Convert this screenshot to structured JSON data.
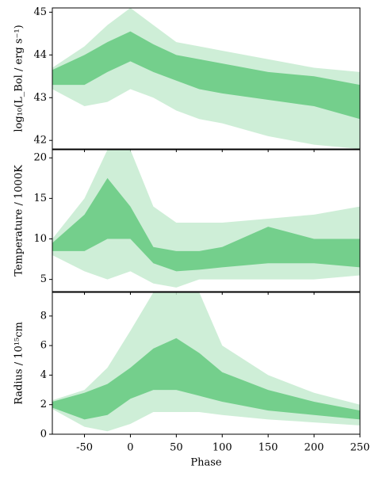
{
  "chart_data": [
    {
      "type": "band",
      "ylabel": "log₁₀(L_Bol / erg s⁻¹)",
      "x": [
        -85,
        -50,
        -25,
        0,
        25,
        50,
        75,
        100,
        150,
        200,
        250
      ],
      "xlim": [
        -85,
        250
      ],
      "ylim": [
        41.8,
        45.1
      ],
      "yticks": [
        42,
        43,
        44,
        45
      ],
      "series": [
        {
          "color": "#c6ebd0",
          "upper": [
            43.7,
            44.2,
            44.7,
            45.1,
            44.7,
            44.3,
            44.2,
            44.1,
            43.9,
            43.7,
            43.6
          ],
          "lower": [
            43.2,
            42.8,
            42.9,
            43.2,
            43.0,
            42.7,
            42.5,
            42.4,
            42.1,
            41.9,
            41.8
          ]
        },
        {
          "color": "#64c97f",
          "upper": [
            43.65,
            44.0,
            44.3,
            44.55,
            44.25,
            44.0,
            43.9,
            43.8,
            43.6,
            43.5,
            43.3
          ],
          "lower": [
            43.3,
            43.3,
            43.6,
            43.85,
            43.6,
            43.4,
            43.2,
            43.1,
            42.95,
            42.8,
            42.5
          ]
        }
      ]
    },
    {
      "type": "band",
      "ylabel": "Temperature / 1000K",
      "x": [
        -85,
        -50,
        -25,
        0,
        25,
        50,
        75,
        100,
        150,
        200,
        250
      ],
      "xlim": [
        -85,
        250
      ],
      "ylim": [
        3.5,
        21
      ],
      "yticks": [
        5,
        10,
        15,
        20
      ],
      "series": [
        {
          "color": "#c6ebd0",
          "upper": [
            10,
            15,
            21,
            21,
            14,
            12,
            12,
            12,
            12.5,
            13,
            14
          ],
          "lower": [
            8,
            6,
            5,
            6,
            4.5,
            4,
            5,
            5,
            5,
            5,
            5.5
          ]
        },
        {
          "color": "#64c97f",
          "upper": [
            9.5,
            13,
            17.5,
            14,
            9,
            8.5,
            8.5,
            9,
            11.5,
            10,
            10
          ],
          "lower": [
            8.5,
            8.5,
            10,
            10,
            7,
            6,
            6.2,
            6.5,
            7,
            7,
            6.5
          ]
        }
      ]
    },
    {
      "type": "band",
      "ylabel": "Radius / 10¹⁵cm",
      "xlabel": "Phase",
      "x": [
        -85,
        -50,
        -25,
        0,
        25,
        50,
        75,
        100,
        150,
        200,
        250
      ],
      "xlim": [
        -85,
        250
      ],
      "xticks": [
        -50,
        0,
        50,
        100,
        150,
        200,
        250
      ],
      "ylim": [
        0,
        9.6
      ],
      "yticks": [
        0,
        2,
        4,
        6,
        8
      ],
      "series": [
        {
          "color": "#c6ebd0",
          "upper": [
            2.3,
            3.0,
            4.5,
            7.0,
            9.6,
            9.6,
            9.6,
            6.0,
            4.0,
            2.8,
            2.0
          ],
          "lower": [
            1.7,
            0.5,
            0.2,
            0.7,
            1.5,
            1.5,
            1.5,
            1.3,
            1.0,
            0.8,
            0.6
          ]
        },
        {
          "color": "#64c97f",
          "upper": [
            2.2,
            2.8,
            3.4,
            4.5,
            5.8,
            6.5,
            5.5,
            4.2,
            3.0,
            2.2,
            1.6
          ],
          "lower": [
            1.8,
            1.0,
            1.3,
            2.4,
            3.0,
            3.0,
            2.6,
            2.2,
            1.6,
            1.3,
            1.0
          ]
        }
      ]
    }
  ]
}
